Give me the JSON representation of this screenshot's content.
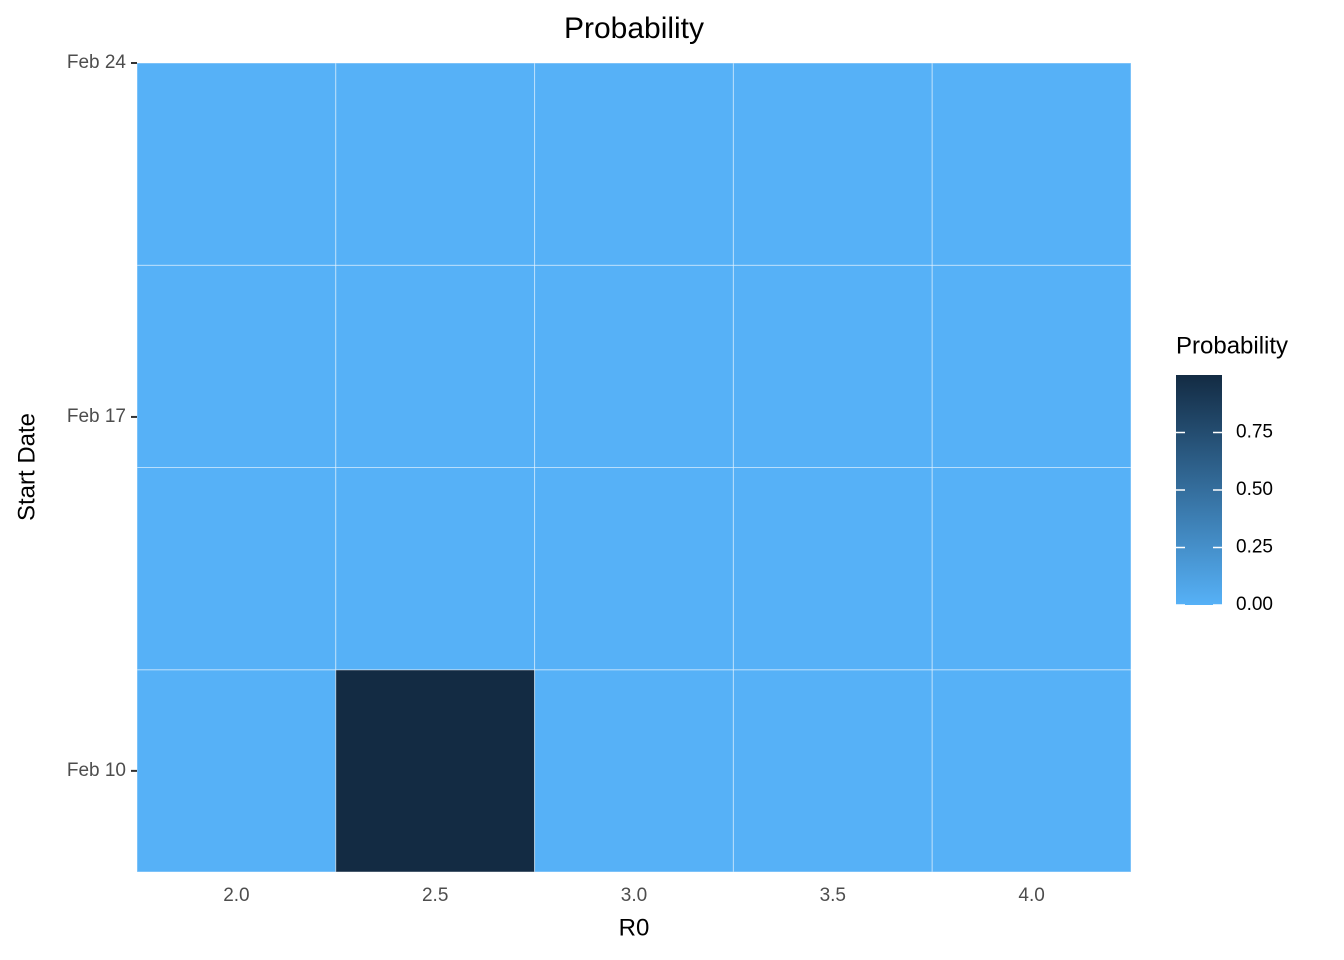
{
  "chart_data": {
    "type": "heatmap",
    "title": "Probability",
    "x_label": "R0",
    "y_label": "Start Date",
    "legend_title": "Probability",
    "x": [
      2,
      2.5,
      3,
      3.5,
      4,
      2,
      2.5,
      3,
      3.5,
      4,
      2,
      2.5,
      3,
      3.5,
      4,
      2,
      2.5,
      3,
      3.5,
      4
    ],
    "y": [
      10,
      10,
      10,
      10,
      10,
      14,
      14,
      14,
      14,
      14,
      18,
      18,
      18,
      18,
      18,
      22,
      22,
      22,
      22,
      22
    ],
    "values": [
      0,
      1,
      0,
      0,
      0,
      0,
      0,
      0,
      0,
      0,
      0,
      0,
      0,
      0,
      0,
      0,
      0,
      0,
      0,
      0
    ],
    "xlim": [
      1.75,
      4.25
    ],
    "xticks": [
      {
        "value": 2,
        "label": "2.0"
      },
      {
        "value": 2.5,
        "label": "2.5"
      },
      {
        "value": 3,
        "label": "3.0"
      },
      {
        "value": 3.5,
        "label": "3.5"
      },
      {
        "value": 4,
        "label": "4.0"
      }
    ],
    "ylim": [
      8,
      24
    ],
    "yticks": [
      {
        "value": 10,
        "label": "Feb 10"
      },
      {
        "value": 17,
        "label": "Feb 17"
      },
      {
        "value": 24,
        "label": "Feb 24"
      }
    ],
    "clim": [
      0,
      1
    ],
    "cticks": [
      {
        "value": 0,
        "label": "0.00"
      },
      {
        "value": 0.25,
        "label": "0.25"
      },
      {
        "value": 0.5,
        "label": "0.50"
      },
      {
        "value": 0.75,
        "label": "0.75"
      }
    ],
    "color_low": "#56b1f7",
    "color_high": "#132b43"
  }
}
